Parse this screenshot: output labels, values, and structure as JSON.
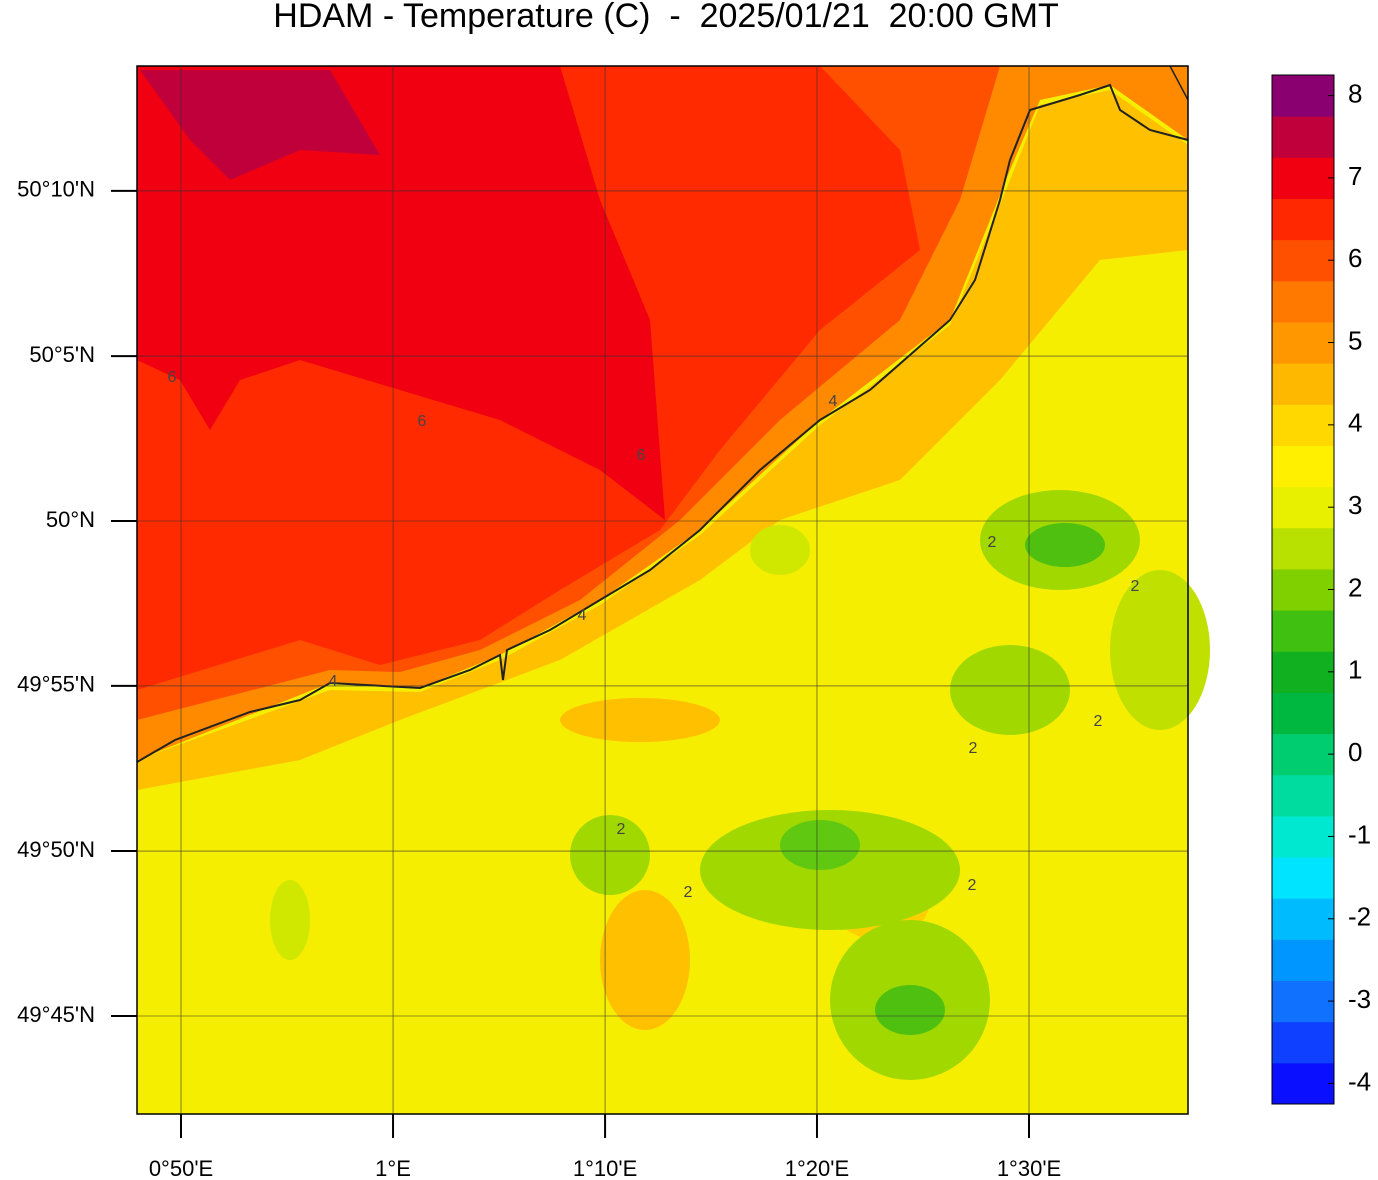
{
  "chart_data": {
    "type": "contour_map",
    "title": "HDAM - Temperature (C)  -  2025/01/21  20:00 GMT",
    "xlim": [
      0.7987,
      1.625
    ],
    "ylim": [
      49.7005,
      50.2298
    ],
    "xticks": [
      {
        "value": 0.8333,
        "label": "0°50'E"
      },
      {
        "value": 1,
        "label": "1°E"
      },
      {
        "value": 1.1667,
        "label": "1°10'E"
      },
      {
        "value": 1.3333,
        "label": "1°20'E"
      },
      {
        "value": 1.5,
        "label": "1°30'E"
      }
    ],
    "yticks": [
      {
        "value": 50.1667,
        "label": "50°10'N"
      },
      {
        "value": 50.0833,
        "label": "50°5'N"
      },
      {
        "value": 50,
        "label": "50°N"
      },
      {
        "value": 49.9167,
        "label": "49°55'N"
      },
      {
        "value": 49.8333,
        "label": "49°50'N"
      },
      {
        "value": 49.75,
        "label": "49°45'N"
      }
    ],
    "grid": true,
    "contour_labels": [
      6,
      6,
      6,
      4,
      4,
      4,
      2,
      2,
      2,
      2,
      2,
      2,
      2
    ],
    "colorbar": {
      "lim": [
        -4.25,
        8.25
      ],
      "ticks": [
        8,
        7,
        6,
        5,
        4,
        3,
        2,
        1,
        0,
        -1,
        -2,
        -3,
        -4
      ],
      "colors": [
        "#0a10ff",
        "#1040ff",
        "#1070ff",
        "#0096ff",
        "#00bcff",
        "#00e4ff",
        "#00e8d0",
        "#00dca0",
        "#00cc70",
        "#00b840",
        "#10b020",
        "#40c010",
        "#80d000",
        "#b8e000",
        "#e8f000",
        "#fff000",
        "#ffd800",
        "#ffb800",
        "#ff9800",
        "#ff7800",
        "#ff5000",
        "#ff2800",
        "#f00010",
        "#c0003a",
        "#8a0070"
      ]
    }
  }
}
